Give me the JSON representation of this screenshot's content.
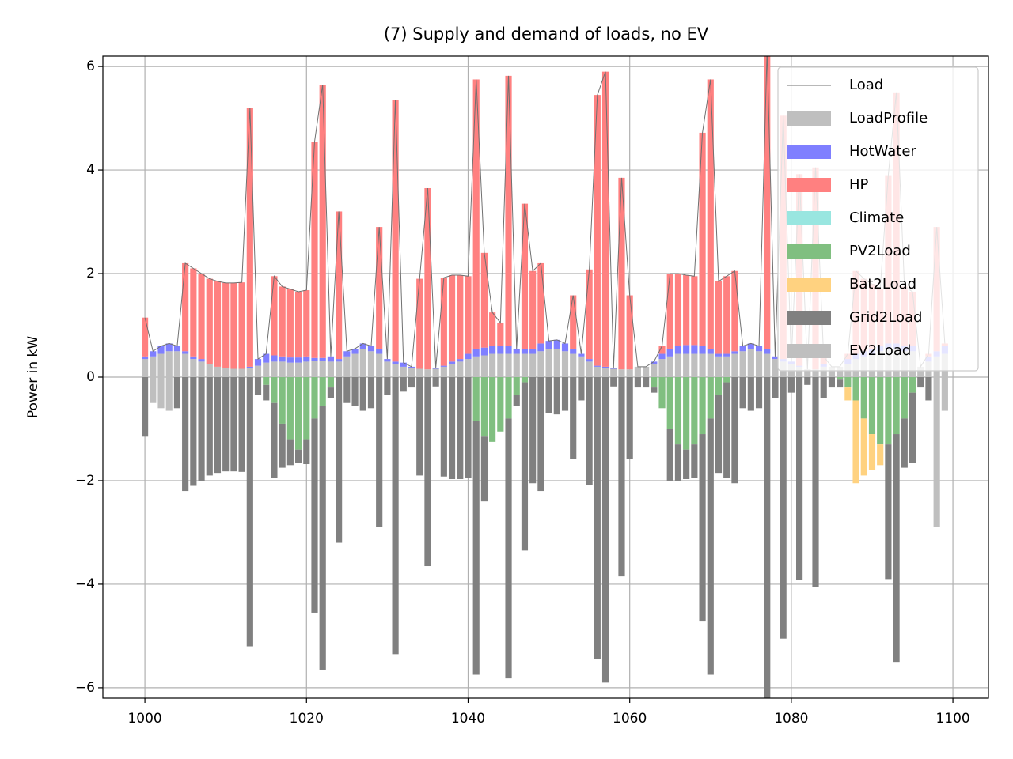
{
  "chart_data": {
    "type": "bar",
    "title": "(7) Supply and demand of loads, no EV",
    "y_label": "Power in kW",
    "x": [
      1000,
      1001,
      1002,
      1003,
      1004,
      1005,
      1006,
      1007,
      1008,
      1009,
      1010,
      1011,
      1012,
      1013,
      1014,
      1015,
      1016,
      1017,
      1018,
      1019,
      1020,
      1021,
      1022,
      1023,
      1024,
      1025,
      1026,
      1027,
      1028,
      1029,
      1030,
      1031,
      1032,
      1033,
      1034,
      1035,
      1036,
      1037,
      1038,
      1039,
      1040,
      1041,
      1042,
      1043,
      1044,
      1045,
      1046,
      1047,
      1048,
      1049,
      1050,
      1051,
      1052,
      1053,
      1054,
      1055,
      1056,
      1057,
      1058,
      1059,
      1060,
      1061,
      1062,
      1063,
      1064,
      1065,
      1066,
      1067,
      1068,
      1069,
      1070,
      1071,
      1072,
      1073,
      1074,
      1075,
      1076,
      1077,
      1078,
      1079,
      1080,
      1081,
      1082,
      1083,
      1084,
      1085,
      1086,
      1087,
      1088,
      1089,
      1090,
      1091,
      1092,
      1093,
      1094,
      1095,
      1096,
      1097,
      1098,
      1099
    ],
    "xlim": [
      994.8,
      1104.4
    ],
    "xticks": [
      1000,
      1020,
      1040,
      1060,
      1080,
      1100
    ],
    "ylim": [
      -6.2,
      6.2
    ],
    "yticks": [
      {
        "value": -6,
        "label": "−6"
      },
      {
        "value": -4,
        "label": "−4"
      },
      {
        "value": -2,
        "label": "−2"
      },
      0,
      2,
      4,
      6
    ],
    "grid": true,
    "legend": "upper right",
    "series": [
      {
        "name": "Load",
        "type": "line",
        "color": "#707070",
        "values": [
          1.15,
          0.5,
          0.6,
          0.65,
          0.6,
          2.2,
          2.1,
          2.0,
          1.9,
          1.85,
          1.82,
          1.82,
          1.83,
          5.2,
          0.35,
          0.45,
          1.95,
          1.75,
          1.7,
          1.65,
          1.68,
          4.55,
          5.65,
          0.4,
          3.2,
          0.5,
          0.55,
          0.65,
          0.6,
          2.9,
          0.35,
          5.35,
          0.28,
          0.2,
          1.9,
          3.65,
          0.18,
          1.92,
          1.97,
          1.97,
          1.95,
          5.75,
          2.4,
          1.25,
          1.05,
          5.82,
          0.55,
          3.35,
          2.05,
          2.2,
          0.7,
          0.72,
          0.65,
          1.58,
          0.45,
          2.08,
          5.45,
          5.9,
          0.18,
          3.85,
          1.58,
          0.2,
          0.2,
          0.3,
          0.6,
          2.0,
          2.0,
          1.97,
          1.95,
          4.72,
          5.75,
          1.85,
          1.95,
          2.05,
          0.6,
          0.65,
          0.6,
          6.3,
          0.4,
          5.05,
          0.3,
          3.92,
          0.15,
          4.05,
          0.4,
          0.2,
          0.2,
          0.45,
          2.05,
          1.9,
          1.8,
          1.7,
          3.9,
          5.5,
          1.75,
          1.65,
          0.2,
          0.45,
          2.9,
          0.65
        ]
      },
      {
        "name": "LoadProfile",
        "type": "bar",
        "color": "#bfbfbf",
        "values": [
          0.35,
          0.4,
          0.45,
          0.5,
          0.5,
          0.45,
          0.35,
          0.3,
          0.25,
          0.2,
          0.18,
          0.16,
          0.16,
          0.18,
          0.22,
          0.28,
          0.3,
          0.3,
          0.28,
          0.28,
          0.3,
          0.32,
          0.32,
          0.3,
          0.3,
          0.4,
          0.45,
          0.55,
          0.5,
          0.45,
          0.3,
          0.25,
          0.2,
          0.18,
          0.16,
          0.15,
          0.16,
          0.2,
          0.25,
          0.3,
          0.35,
          0.4,
          0.42,
          0.45,
          0.45,
          0.45,
          0.45,
          0.45,
          0.45,
          0.5,
          0.55,
          0.55,
          0.5,
          0.45,
          0.4,
          0.3,
          0.2,
          0.18,
          0.16,
          0.15,
          0.15,
          0.2,
          0.2,
          0.25,
          0.35,
          0.4,
          0.45,
          0.45,
          0.45,
          0.45,
          0.45,
          0.4,
          0.4,
          0.45,
          0.5,
          0.55,
          0.5,
          0.45,
          0.35,
          0.3,
          0.25,
          0.2,
          0.15,
          0.15,
          0.2,
          0.2,
          0.2,
          0.25,
          0.35,
          0.4,
          0.45,
          0.5,
          0.55,
          0.55,
          0.5,
          0.5,
          0.2,
          0.3,
          0.4,
          0.45
        ]
      },
      {
        "name": "HotWater",
        "type": "bar",
        "color": "#7f7fff",
        "values": [
          0.05,
          0.1,
          0.15,
          0.15,
          0.1,
          0.05,
          0.05,
          0.05,
          0,
          0,
          0,
          0,
          0,
          0.02,
          0.13,
          0.17,
          0.12,
          0.1,
          0.1,
          0.1,
          0.1,
          0.05,
          0.05,
          0.1,
          0.05,
          0.1,
          0.1,
          0.1,
          0.1,
          0.1,
          0.05,
          0.05,
          0.08,
          0.02,
          0,
          0,
          0.02,
          0.02,
          0.05,
          0.05,
          0.1,
          0.15,
          0.15,
          0.15,
          0.15,
          0.15,
          0.1,
          0.1,
          0.1,
          0.15,
          0.15,
          0.17,
          0.15,
          0.1,
          0.05,
          0.05,
          0.02,
          0.02,
          0.02,
          0,
          0,
          0,
          0,
          0.05,
          0.1,
          0.15,
          0.15,
          0.17,
          0.17,
          0.15,
          0.1,
          0.05,
          0.05,
          0.05,
          0.1,
          0.1,
          0.1,
          0.1,
          0.05,
          0.05,
          0.05,
          0.02,
          0,
          0,
          0.05,
          0,
          0,
          0.1,
          0.1,
          0.1,
          0.1,
          0.1,
          0.1,
          0.1,
          0.1,
          0.1,
          0,
          0.1,
          0.1,
          0.15
        ]
      },
      {
        "name": "HP",
        "type": "bar",
        "color": "#ff8080",
        "values": [
          0.75,
          0,
          0,
          0,
          0,
          1.7,
          1.7,
          1.65,
          1.65,
          1.65,
          1.64,
          1.66,
          1.67,
          5.0,
          0,
          0,
          1.53,
          1.35,
          1.32,
          1.27,
          1.28,
          4.18,
          5.28,
          0,
          2.85,
          0,
          0,
          0,
          0,
          2.35,
          0,
          5.05,
          0,
          0,
          1.74,
          3.5,
          0,
          1.7,
          1.67,
          1.62,
          1.5,
          5.2,
          1.83,
          0.65,
          0.45,
          5.22,
          0,
          2.8,
          1.5,
          1.55,
          0,
          0,
          0,
          1.03,
          0,
          1.73,
          5.23,
          5.7,
          0,
          3.7,
          1.43,
          0,
          0,
          0,
          0.15,
          1.45,
          1.4,
          1.35,
          1.33,
          4.12,
          5.2,
          1.4,
          1.5,
          1.55,
          0,
          0,
          0,
          5.75,
          0,
          4.7,
          0,
          3.7,
          0,
          3.9,
          0.15,
          0,
          0,
          0.1,
          1.6,
          1.4,
          1.25,
          1.1,
          3.25,
          4.85,
          1.15,
          1.05,
          0,
          0.05,
          2.4,
          0.05
        ]
      },
      {
        "name": "Climate",
        "type": "bar",
        "color": "#99e6e0",
        "values": [
          0,
          0,
          0,
          0,
          0,
          0,
          0,
          0,
          0,
          0,
          0,
          0,
          0,
          0,
          0,
          0,
          0,
          0,
          0,
          0,
          0,
          0,
          0,
          0,
          0,
          0,
          0,
          0,
          0,
          0,
          0,
          0,
          0,
          0,
          0,
          0,
          0,
          0,
          0,
          0,
          0,
          0,
          0,
          0,
          0,
          0,
          0,
          0,
          0,
          0,
          0,
          0,
          0,
          0,
          0,
          0,
          0,
          0,
          0,
          0,
          0,
          0,
          0,
          0,
          0,
          0,
          0,
          0,
          0,
          0,
          0,
          0,
          0,
          0,
          0,
          0,
          0,
          0,
          0,
          0,
          0,
          0,
          0,
          0,
          0,
          0,
          0,
          0,
          0,
          0,
          0,
          0,
          0,
          0,
          0,
          0,
          0,
          0,
          0,
          0
        ]
      },
      {
        "name": "PV2Load",
        "type": "bar",
        "color": "#80bf80",
        "values": [
          0,
          0,
          0,
          0,
          0,
          0,
          0,
          0,
          0,
          0,
          0,
          0,
          0,
          0,
          0,
          -0.15,
          -0.5,
          -0.9,
          -1.2,
          -1.4,
          -1.2,
          -0.8,
          -0.55,
          -0.2,
          0,
          0,
          0,
          0,
          0,
          0,
          0,
          0,
          0,
          0,
          0,
          0,
          0,
          0,
          0,
          0,
          0,
          -0.85,
          -1.15,
          -1.25,
          -1.05,
          -0.8,
          -0.35,
          -0.1,
          0,
          0,
          0,
          0,
          0,
          0,
          0,
          0,
          0,
          0,
          0,
          0,
          0,
          0,
          0,
          -0.2,
          -0.6,
          -1.0,
          -1.3,
          -1.4,
          -1.3,
          -1.1,
          -0.8,
          -0.35,
          -0.1,
          0,
          0,
          0,
          0,
          0,
          0,
          0,
          0,
          0,
          0,
          0,
          0,
          0,
          -0.05,
          -0.2,
          -0.45,
          -0.8,
          -1.1,
          -1.3,
          -1.3,
          -1.1,
          -0.8,
          -0.3,
          0,
          0,
          0,
          0
        ]
      },
      {
        "name": "Bat2Load",
        "type": "bar",
        "color": "#ffd280",
        "values": [
          0,
          0,
          0,
          0,
          0,
          0,
          0,
          0,
          0,
          0,
          0,
          0,
          0,
          0,
          0,
          0,
          0,
          0,
          0,
          0,
          0,
          0,
          0,
          0,
          0,
          0,
          0,
          0,
          0,
          0,
          0,
          0,
          0,
          0,
          0,
          0,
          0,
          0,
          0,
          0,
          0,
          0,
          0,
          0,
          0,
          0,
          0,
          0,
          0,
          0,
          0,
          0,
          0,
          0,
          0,
          0,
          0,
          0,
          0,
          0,
          0,
          0,
          0,
          0,
          0,
          0,
          0,
          0,
          0,
          0,
          0,
          0,
          0,
          0,
          0,
          0,
          0,
          0,
          0,
          0,
          0,
          0,
          0,
          0,
          0,
          0,
          0,
          -0.25,
          -1.6,
          -1.1,
          -0.7,
          -0.4,
          0,
          0,
          0,
          0,
          0,
          0,
          0,
          0
        ]
      },
      {
        "name": "Grid2Load",
        "type": "bar",
        "color": "#808080",
        "values": [
          -1.15,
          0,
          0,
          0,
          -0.6,
          -2.2,
          -2.1,
          -2.0,
          -1.9,
          -1.85,
          -1.82,
          -1.82,
          -1.83,
          -5.2,
          -0.35,
          -0.3,
          -1.45,
          -0.85,
          -0.5,
          -0.25,
          -0.48,
          -3.75,
          -5.1,
          -0.2,
          -3.2,
          -0.5,
          -0.55,
          -0.65,
          -0.6,
          -2.9,
          -0.35,
          -5.35,
          -0.28,
          -0.2,
          -1.9,
          -3.65,
          -0.18,
          -1.92,
          -1.97,
          -1.97,
          -1.95,
          -4.9,
          -1.25,
          0,
          0,
          -5.02,
          -0.2,
          -3.25,
          -2.05,
          -2.2,
          -0.7,
          -0.72,
          -0.65,
          -1.58,
          -0.45,
          -2.08,
          -5.45,
          -5.9,
          -0.18,
          -3.85,
          -1.58,
          -0.2,
          -0.2,
          -0.1,
          0,
          -1.0,
          -0.7,
          -0.57,
          -0.65,
          -3.62,
          -4.95,
          -1.5,
          -1.85,
          -2.05,
          -0.6,
          -0.65,
          -0.6,
          -6.3,
          -0.4,
          -5.05,
          -0.3,
          -3.92,
          -0.15,
          -4.05,
          -0.4,
          -0.2,
          -0.15,
          0,
          0,
          0,
          0,
          0,
          -2.6,
          -4.4,
          -0.95,
          -1.35,
          -0.2,
          -0.45,
          0,
          0
        ]
      },
      {
        "name": "EV2Load",
        "type": "bar",
        "color": "#bfbfbf",
        "values": [
          0,
          -0.5,
          -0.6,
          -0.65,
          0,
          0,
          0,
          0,
          0,
          0,
          0,
          0,
          0,
          0,
          0,
          0,
          0,
          0,
          0,
          0,
          0,
          0,
          0,
          0,
          0,
          0,
          0,
          0,
          0,
          0,
          0,
          0,
          0,
          0,
          0,
          0,
          0,
          0,
          0,
          0,
          0,
          0,
          0,
          0,
          0,
          0,
          0,
          0,
          0,
          0,
          0,
          0,
          0,
          0,
          0,
          0,
          0,
          0,
          0,
          0,
          0,
          0,
          0,
          0,
          0,
          0,
          0,
          0,
          0,
          0,
          0,
          0,
          0,
          0,
          0,
          0,
          0,
          0,
          0,
          0,
          0,
          0,
          0,
          0,
          0,
          0,
          0,
          0,
          0,
          0,
          0,
          0,
          0,
          0,
          0,
          0,
          0,
          0,
          -2.9,
          -0.65
        ]
      }
    ]
  }
}
